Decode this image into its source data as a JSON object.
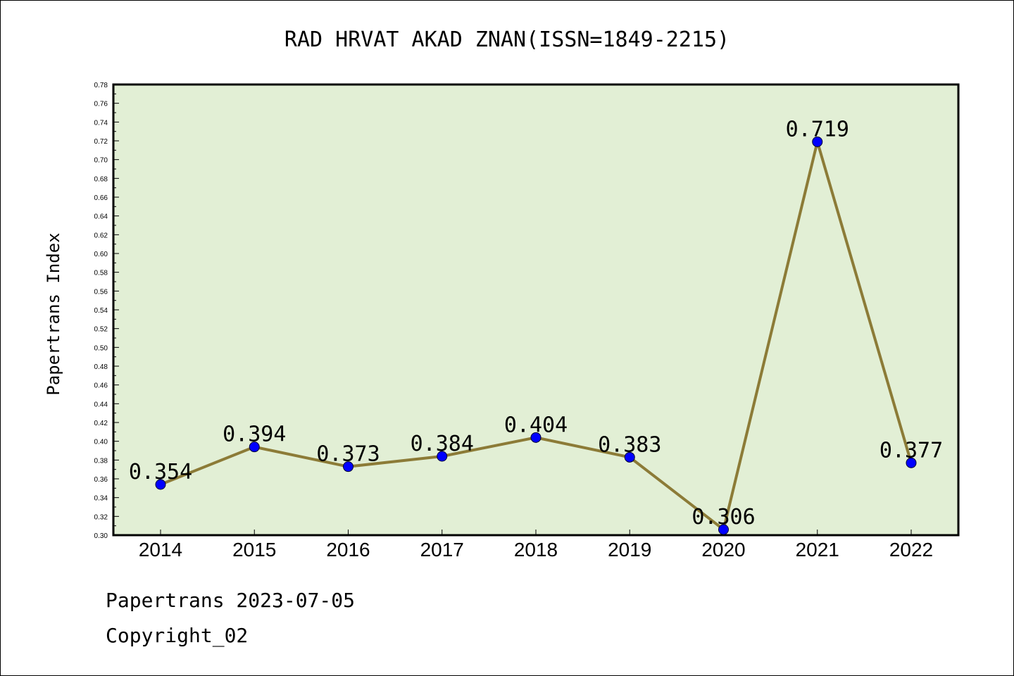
{
  "chart_data": {
    "type": "line",
    "title": "RAD HRVAT AKAD ZNAN(ISSN=1849-2215)",
    "xlabel": "",
    "ylabel": "Papertrans Index",
    "categories": [
      "2014",
      "2015",
      "2016",
      "2017",
      "2018",
      "2019",
      "2020",
      "2021",
      "2022"
    ],
    "values": [
      0.354,
      0.394,
      0.373,
      0.384,
      0.404,
      0.383,
      0.306,
      0.719,
      0.377
    ],
    "data_labels": [
      "0.354",
      "0.394",
      "0.373",
      "0.384",
      "0.404",
      "0.383",
      "0.306",
      "0.719",
      "0.377"
    ],
    "ylim": [
      0.3,
      0.78
    ],
    "yticks": [
      "0.30",
      "0.32",
      "0.34",
      "0.36",
      "0.38",
      "0.40",
      "0.42",
      "0.44",
      "0.46",
      "0.48",
      "0.50",
      "0.52",
      "0.54",
      "0.56",
      "0.58",
      "0.60",
      "0.62",
      "0.64",
      "0.66",
      "0.68",
      "0.70",
      "0.72",
      "0.74",
      "0.76",
      "0.78"
    ],
    "grid": false,
    "colors": {
      "plot_background": "#e2efd5",
      "line": "#8c7b37",
      "marker": "#0000ff"
    }
  },
  "footer": {
    "line1": "Papertrans 2023-07-05",
    "line2": "Copyright_02"
  }
}
